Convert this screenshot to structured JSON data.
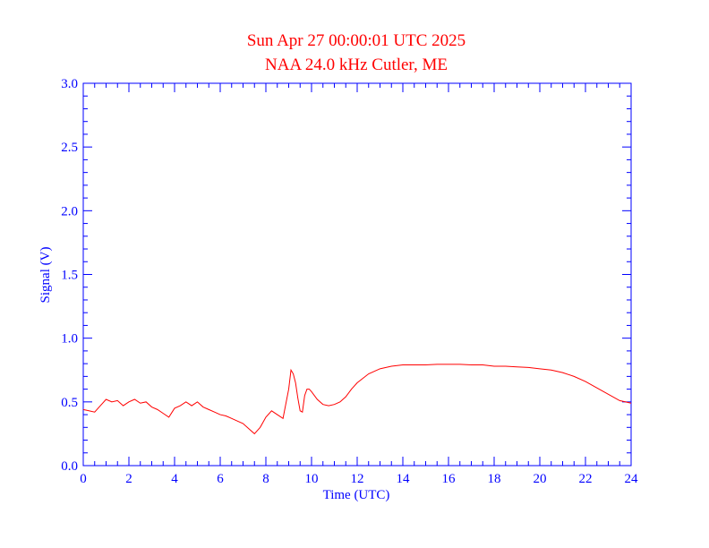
{
  "chart_data": {
    "type": "line",
    "title": "Sun Apr 27 00:00:01 UTC 2025",
    "subtitle": "NAA 24.0 kHz Cutler, ME",
    "xlabel": "Time (UTC)",
    "ylabel": "Signal (V)",
    "xlim": [
      0,
      24
    ],
    "ylim": [
      0,
      3.0
    ],
    "x_ticks": [
      "0",
      "2",
      "4",
      "6",
      "8",
      "10",
      "12",
      "14",
      "16",
      "18",
      "20",
      "22",
      "24"
    ],
    "y_ticks": [
      "0.0",
      "0.5",
      "1.0",
      "1.5",
      "2.0",
      "2.5",
      "3.0"
    ],
    "grid": false,
    "colors": {
      "series": "#ff0000",
      "axes": "#0000ff",
      "title": "#ff0000"
    },
    "series": [
      {
        "x": [
          0,
          0.25,
          0.5,
          0.75,
          1,
          1.25,
          1.5,
          1.75,
          2,
          2.25,
          2.5,
          2.75,
          3,
          3.25,
          3.5,
          3.75,
          4,
          4.25,
          4.5,
          4.75,
          5,
          5.25,
          5.5,
          5.75,
          6,
          6.25,
          6.5,
          6.75,
          7,
          7.25,
          7.5,
          7.75,
          8,
          8.25,
          8.5,
          8.75,
          9,
          9.1,
          9.2,
          9.3,
          9.4,
          9.5,
          9.6,
          9.7,
          9.8,
          9.9,
          10,
          10.25,
          10.5,
          10.75,
          11,
          11.25,
          11.5,
          11.75,
          12,
          12.5,
          13,
          13.5,
          14,
          14.5,
          15,
          15.5,
          16,
          16.5,
          17,
          17.5,
          18,
          18.5,
          19,
          19.5,
          20,
          20.5,
          21,
          21.5,
          22,
          22.5,
          23,
          23.5,
          24
        ],
        "y": [
          0.44,
          0.43,
          0.42,
          0.47,
          0.52,
          0.5,
          0.51,
          0.47,
          0.5,
          0.52,
          0.49,
          0.5,
          0.46,
          0.44,
          0.41,
          0.38,
          0.45,
          0.47,
          0.5,
          0.47,
          0.5,
          0.46,
          0.44,
          0.42,
          0.4,
          0.39,
          0.37,
          0.35,
          0.33,
          0.29,
          0.25,
          0.3,
          0.38,
          0.43,
          0.4,
          0.37,
          0.6,
          0.75,
          0.72,
          0.65,
          0.53,
          0.43,
          0.42,
          0.55,
          0.6,
          0.6,
          0.58,
          0.52,
          0.48,
          0.47,
          0.48,
          0.5,
          0.54,
          0.6,
          0.65,
          0.72,
          0.76,
          0.78,
          0.79,
          0.79,
          0.79,
          0.795,
          0.795,
          0.795,
          0.79,
          0.79,
          0.78,
          0.78,
          0.775,
          0.77,
          0.76,
          0.75,
          0.73,
          0.7,
          0.66,
          0.61,
          0.56,
          0.51,
          0.49
        ]
      }
    ]
  }
}
